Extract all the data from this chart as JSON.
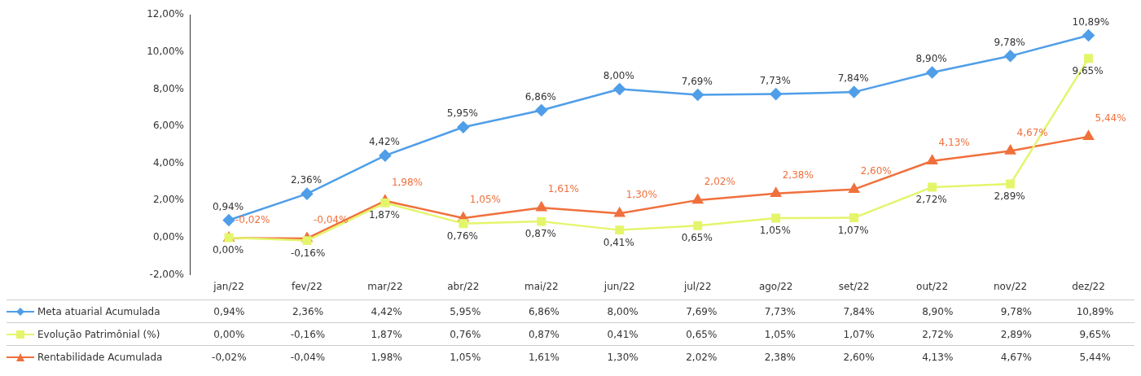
{
  "chart_data": {
    "type": "line",
    "categories": [
      "jan/22",
      "fev/22",
      "mar/22",
      "abr/22",
      "mai/22",
      "jun/22",
      "jul/22",
      "ago/22",
      "set/22",
      "out/22",
      "nov/22",
      "dez/22"
    ],
    "ylim": [
      -2,
      12
    ],
    "yticks": [
      {
        "value": -2,
        "label": "-2,00%"
      },
      {
        "value": 0,
        "label": "0,00%"
      },
      {
        "value": 2,
        "label": "2,00%"
      },
      {
        "value": 4,
        "label": "4,00%"
      },
      {
        "value": 6,
        "label": "6,00%"
      },
      {
        "value": 8,
        "label": "8,00%"
      },
      {
        "value": 10,
        "label": "10,00%"
      },
      {
        "value": 12,
        "label": "12,00%"
      }
    ],
    "grid": false,
    "legend": "bottom",
    "series": [
      {
        "name": "Meta atuarial Acumulada",
        "color": "#4f9ee8",
        "marker": "diamond",
        "values": [
          0.94,
          2.36,
          4.42,
          5.95,
          6.86,
          8.0,
          7.69,
          7.73,
          7.84,
          8.9,
          9.78,
          10.89
        ],
        "value_labels": [
          "0,94%",
          "2,36%",
          "4,42%",
          "5,95%",
          "6,86%",
          "8,00%",
          "7,69%",
          "7,73%",
          "7,84%",
          "8,90%",
          "9,78%",
          "10,89%"
        ]
      },
      {
        "name": "Evolução Patrimônial (%)",
        "color": "#e4f56c",
        "marker": "square",
        "values": [
          0.0,
          -0.16,
          1.87,
          0.76,
          0.87,
          0.41,
          0.65,
          1.05,
          1.07,
          2.72,
          2.89,
          9.65
        ],
        "value_labels": [
          "0,00%",
          "-0,16%",
          "1,87%",
          "0,76%",
          "0,87%",
          "0,41%",
          "0,65%",
          "1,05%",
          "1,07%",
          "2,72%",
          "2,89%",
          "9,65%"
        ]
      },
      {
        "name": "Rentabilidade Acumulada",
        "color": "#f0703c",
        "marker": "triangle",
        "values": [
          -0.02,
          -0.04,
          1.98,
          1.05,
          1.61,
          1.3,
          2.02,
          2.38,
          2.6,
          4.13,
          4.67,
          5.44
        ],
        "value_labels": [
          "-0,02%",
          "-0,04%",
          "1,98%",
          "1,05%",
          "1,61%",
          "1,30%",
          "2,02%",
          "2,38%",
          "2,60%",
          "4,13%",
          "4,67%",
          "5,44%"
        ]
      }
    ]
  }
}
